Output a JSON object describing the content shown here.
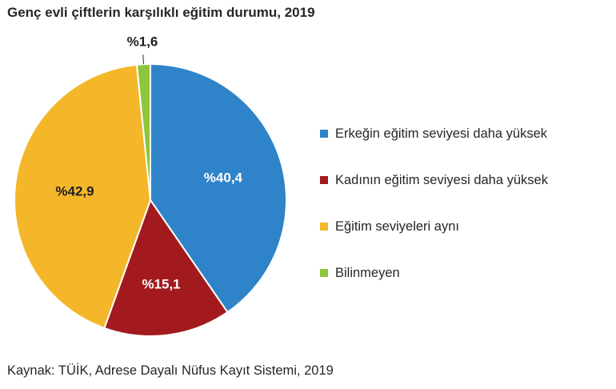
{
  "chart_data": {
    "type": "pie",
    "title": "Genç evli çiftlerin karşılıklı eğitim durumu, 2019",
    "slices": [
      {
        "name": "Erkeğin eğitim seviyesi daha yüksek",
        "value": 40.4,
        "label": "%40,4",
        "color": "#2e83c9"
      },
      {
        "name": "Kadının eğitim seviyesi daha yüksek",
        "value": 15.1,
        "label": "%15,1",
        "color": "#a31a1e"
      },
      {
        "name": "Eğitim seviyeleri aynı",
        "value": 42.9,
        "label": "%42,9",
        "color": "#f4b72a"
      },
      {
        "name": "Bilinmeyen",
        "value": 1.6,
        "label": "%1,6",
        "color": "#8cc63e"
      }
    ],
    "legend_position": "right",
    "start_angle": "12 o'clock",
    "direction": "clockwise"
  },
  "source": "Kaynak: TÜİK, Adrese Dayalı Nüfus Kayıt Sistemi, 2019"
}
